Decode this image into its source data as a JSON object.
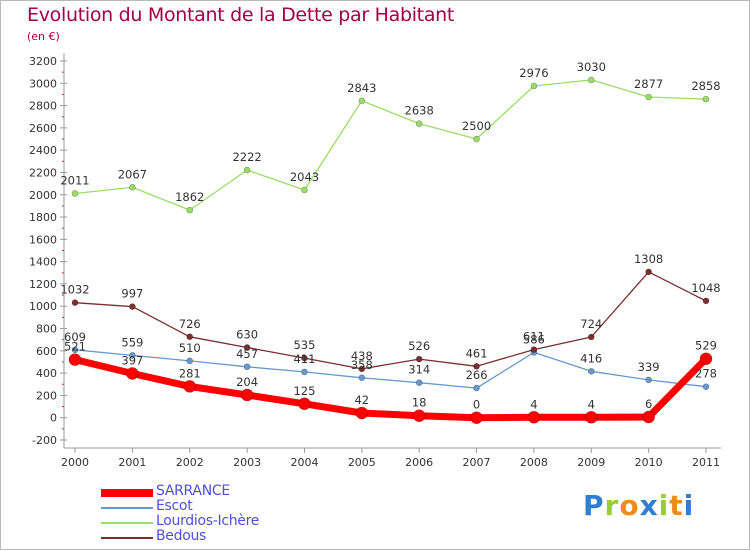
{
  "title": "Evolution du Montant de la Dette par Habitant",
  "subtitle": "(en €)",
  "logo": {
    "text": "Proxiti",
    "letters": [
      {
        "ch": "P",
        "color": "#2f7fd0"
      },
      {
        "ch": "r",
        "color": "#9acd32"
      },
      {
        "ch": "o",
        "color": "#f08a1c"
      },
      {
        "ch": "x",
        "color": "#2f7fd0"
      },
      {
        "ch": "i",
        "color": "#9acd32"
      },
      {
        "ch": "t",
        "color": "#f08a1c"
      },
      {
        "ch": "i",
        "color": "#2f7fd0"
      }
    ]
  },
  "chart_data": {
    "type": "line",
    "title": "Evolution du Montant de la Dette par Habitant",
    "subtitle": "(en €)",
    "categories": [
      "2000",
      "2001",
      "2002",
      "2003",
      "2004",
      "2005",
      "2006",
      "2007",
      "2008",
      "2009",
      "2010",
      "2011"
    ],
    "yticks": [
      -200,
      0,
      200,
      400,
      600,
      800,
      1000,
      1200,
      1400,
      1600,
      1800,
      2000,
      2200,
      2400,
      2600,
      2800,
      3000,
      3200
    ],
    "ylim": [
      -200,
      3200
    ],
    "grid": false,
    "legend_position": "bottom-left",
    "series": [
      {
        "name": "SARRANCE",
        "color": "#ff0000",
        "values": [
          521,
          397,
          281,
          204,
          125,
          42,
          18,
          0,
          4,
          4,
          6,
          529
        ],
        "labels": [
          "521",
          "397",
          "281",
          "204",
          "125",
          "42",
          "18",
          "0",
          "4",
          "4",
          "6",
          "529"
        ]
      },
      {
        "name": "Escot",
        "color": "#6699cc",
        "values": [
          609,
          559,
          510,
          457,
          411,
          358,
          314,
          266,
          586,
          416,
          339,
          278
        ],
        "labels": [
          "609",
          "559",
          "510",
          "457",
          "411",
          "358",
          "314",
          "266",
          "586",
          "416",
          "339",
          "278"
        ]
      },
      {
        "name": "Lourdios-Ichère",
        "color": "#99dd66",
        "values": [
          2011,
          2067,
          1862,
          2222,
          2043,
          2843,
          2638,
          2500,
          2976,
          3030,
          2877,
          2858
        ],
        "labels": [
          "2011",
          "2067",
          "1862",
          "2222",
          "2043",
          "2843",
          "2638",
          "2500",
          "2976",
          "3030",
          "2877",
          "2858"
        ]
      },
      {
        "name": "Bedous",
        "color": "#7a2e2e",
        "values": [
          1032,
          997,
          726,
          630,
          535,
          438,
          526,
          461,
          611,
          724,
          1308,
          1048
        ],
        "labels": [
          "1032",
          "997",
          "726",
          "630",
          "535",
          "438",
          "526",
          "461",
          "611",
          "724",
          "1308",
          "1048"
        ]
      }
    ]
  }
}
